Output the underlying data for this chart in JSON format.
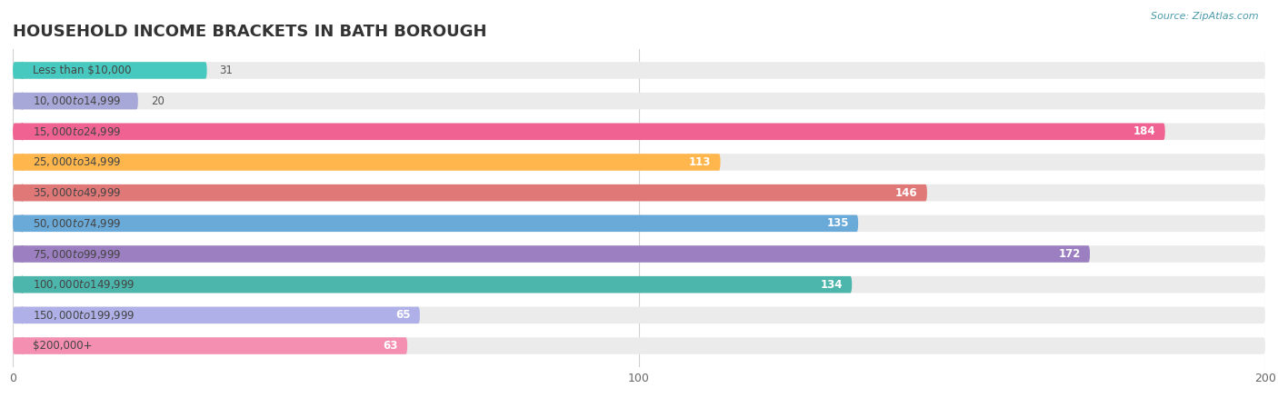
{
  "title": "HOUSEHOLD INCOME BRACKETS IN BATH BOROUGH",
  "source": "Source: ZipAtlas.com",
  "categories": [
    "Less than $10,000",
    "$10,000 to $14,999",
    "$15,000 to $24,999",
    "$25,000 to $34,999",
    "$35,000 to $49,999",
    "$50,000 to $74,999",
    "$75,000 to $99,999",
    "$100,000 to $149,999",
    "$150,000 to $199,999",
    "$200,000+"
  ],
  "values": [
    31,
    20,
    184,
    113,
    146,
    135,
    172,
    134,
    65,
    63
  ],
  "bar_colors": [
    "#47c9bf",
    "#a8a8d8",
    "#f06292",
    "#ffb74d",
    "#e07878",
    "#6aaad8",
    "#9b7fc0",
    "#4db6ac",
    "#b0b0e8",
    "#f48fb1"
  ],
  "xlim": [
    0,
    200
  ],
  "xticks": [
    0,
    100,
    200
  ],
  "bar_bg_color": "#ebebeb",
  "title_fontsize": 13,
  "label_fontsize": 8.5,
  "value_fontsize": 8.5,
  "value_inside_threshold": 40
}
